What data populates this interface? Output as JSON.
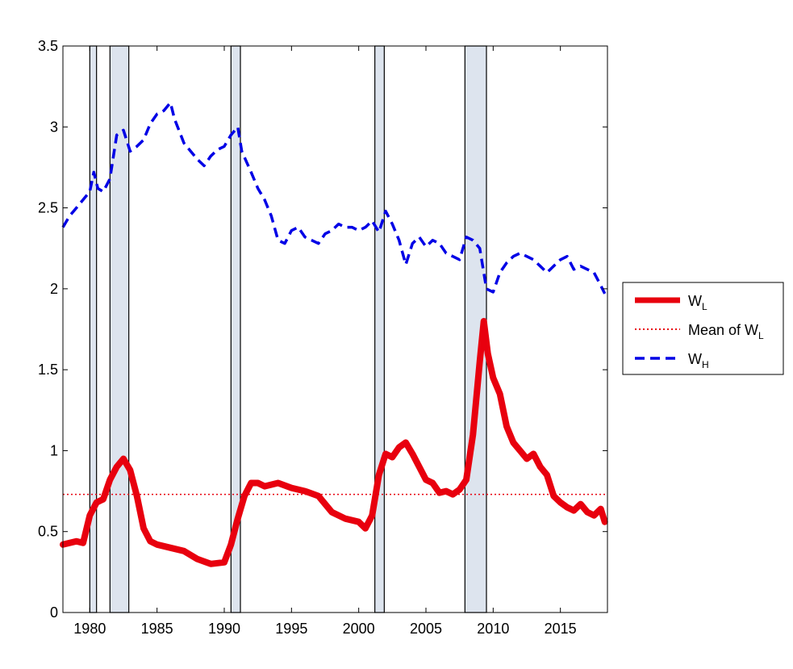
{
  "chart_data": {
    "type": "line",
    "xlim": [
      1978,
      2018.5
    ],
    "ylim": [
      0,
      3.5
    ],
    "x_ticks": [
      1980,
      1985,
      1990,
      1995,
      2000,
      2005,
      2010,
      2015
    ],
    "y_ticks": [
      0,
      0.5,
      1,
      1.5,
      2,
      2.5,
      3,
      3.5
    ],
    "y_tick_labels": [
      "0",
      "0.5",
      "1",
      "1.5",
      "2",
      "2.5",
      "3",
      "3.5"
    ],
    "legend_position": "right",
    "grid": false,
    "shaded_bands": [
      {
        "from": 1980.0,
        "to": 1980.5
      },
      {
        "from": 1981.5,
        "to": 1982.9
      },
      {
        "from": 1990.5,
        "to": 1991.2
      },
      {
        "from": 2001.2,
        "to": 2001.9
      },
      {
        "from": 2007.9,
        "to": 2009.5
      }
    ],
    "band_fill": "#dde4ee",
    "series": [
      {
        "name": "W",
        "subscript": "L",
        "style": "solid",
        "color": "#e8000e",
        "x": [
          1978.0,
          1979.0,
          1979.5,
          1980.0,
          1980.5,
          1981.0,
          1981.5,
          1982.0,
          1982.5,
          1983.0,
          1983.5,
          1984.0,
          1984.5,
          1985.0,
          1986.0,
          1987.0,
          1988.0,
          1989.0,
          1990.0,
          1990.5,
          1991.0,
          1991.5,
          1992.0,
          1992.5,
          1993.0,
          1994.0,
          1995.0,
          1996.0,
          1997.0,
          1998.0,
          1999.0,
          2000.0,
          2000.5,
          2001.0,
          2001.5,
          2002.0,
          2002.5,
          2003.0,
          2003.5,
          2004.0,
          2004.5,
          2005.0,
          2005.5,
          2006.0,
          2006.5,
          2007.0,
          2007.5,
          2008.0,
          2008.5,
          2009.0,
          2009.3,
          2009.6,
          2010.0,
          2010.5,
          2011.0,
          2011.5,
          2012.0,
          2012.5,
          2013.0,
          2013.5,
          2014.0,
          2014.5,
          2015.0,
          2015.5,
          2016.0,
          2016.5,
          2017.0,
          2017.5,
          2018.0,
          2018.3
        ],
        "values": [
          0.42,
          0.44,
          0.43,
          0.6,
          0.68,
          0.7,
          0.82,
          0.9,
          0.95,
          0.88,
          0.72,
          0.52,
          0.44,
          0.42,
          0.4,
          0.38,
          0.33,
          0.3,
          0.31,
          0.42,
          0.58,
          0.72,
          0.8,
          0.8,
          0.78,
          0.8,
          0.77,
          0.75,
          0.72,
          0.62,
          0.58,
          0.56,
          0.52,
          0.6,
          0.85,
          0.98,
          0.96,
          1.02,
          1.05,
          0.98,
          0.9,
          0.82,
          0.8,
          0.74,
          0.75,
          0.73,
          0.76,
          0.82,
          1.1,
          1.55,
          1.8,
          1.6,
          1.45,
          1.35,
          1.15,
          1.05,
          1.0,
          0.95,
          0.98,
          0.9,
          0.85,
          0.72,
          0.68,
          0.65,
          0.63,
          0.67,
          0.62,
          0.6,
          0.64,
          0.56
        ]
      },
      {
        "name": "Mean of W",
        "subscript": "L",
        "style": "dotted",
        "color": "#e8000e",
        "value": 0.73
      },
      {
        "name": "W",
        "subscript": "H",
        "style": "dashed",
        "color": "#0000e6",
        "x": [
          1978.0,
          1978.5,
          1979.0,
          1979.5,
          1980.0,
          1980.3,
          1980.6,
          1981.0,
          1981.5,
          1982.0,
          1982.5,
          1983.0,
          1983.5,
          1984.0,
          1984.5,
          1985.0,
          1985.5,
          1986.0,
          1986.3,
          1987.0,
          1987.5,
          1988.0,
          1988.5,
          1989.0,
          1989.5,
          1990.0,
          1990.5,
          1991.0,
          1991.3,
          1992.0,
          1992.5,
          1993.0,
          1993.5,
          1994.0,
          1994.5,
          1995.0,
          1995.5,
          1996.0,
          1996.5,
          1997.0,
          1997.5,
          1998.0,
          1998.5,
          1999.0,
          1999.5,
          2000.0,
          2000.5,
          2001.0,
          2001.5,
          2002.0,
          2002.5,
          2003.0,
          2003.5,
          2004.0,
          2004.5,
          2005.0,
          2005.5,
          2006.0,
          2006.5,
          2007.0,
          2007.5,
          2008.0,
          2008.5,
          2009.0,
          2009.5,
          2010.0,
          2010.5,
          2011.0,
          2011.5,
          2012.0,
          2012.5,
          2013.0,
          2013.5,
          2014.0,
          2014.5,
          2015.0,
          2015.5,
          2016.0,
          2016.5,
          2017.0,
          2017.5,
          2018.0,
          2018.3
        ],
        "values": [
          2.38,
          2.45,
          2.5,
          2.55,
          2.6,
          2.72,
          2.62,
          2.6,
          2.68,
          2.95,
          2.98,
          2.85,
          2.88,
          2.92,
          3.02,
          3.08,
          3.1,
          3.15,
          3.05,
          2.9,
          2.85,
          2.8,
          2.76,
          2.82,
          2.86,
          2.88,
          2.95,
          3.0,
          2.85,
          2.72,
          2.62,
          2.55,
          2.45,
          2.3,
          2.28,
          2.36,
          2.38,
          2.32,
          2.3,
          2.28,
          2.34,
          2.36,
          2.4,
          2.38,
          2.38,
          2.36,
          2.38,
          2.42,
          2.35,
          2.48,
          2.4,
          2.3,
          2.15,
          2.28,
          2.32,
          2.26,
          2.3,
          2.28,
          2.22,
          2.2,
          2.18,
          2.32,
          2.3,
          2.25,
          2.0,
          1.98,
          2.1,
          2.16,
          2.2,
          2.22,
          2.2,
          2.18,
          2.14,
          2.1,
          2.14,
          2.18,
          2.2,
          2.12,
          2.14,
          2.12,
          2.1,
          2.02,
          1.97
        ]
      }
    ]
  }
}
